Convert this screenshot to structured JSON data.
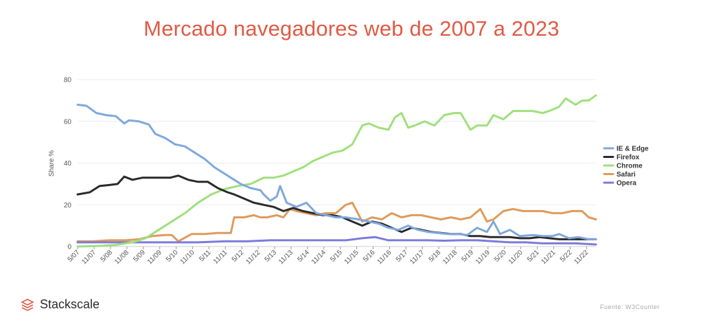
{
  "title": "Mercado navegadores web de 2007 a 2023",
  "brand": {
    "name": "Stackscale",
    "logo_icon": "stackscale-layers-icon",
    "logo_color": "#e05a45"
  },
  "source": "Fuente: W3Counter",
  "chart_data": {
    "type": "line",
    "ylabel": "Share %",
    "xlabel": "",
    "ylim": [
      0,
      80
    ],
    "yticks": [
      0,
      20,
      40,
      60,
      80
    ],
    "xlim": [
      2007.33,
      2023.12
    ],
    "xtick_labels": [
      "5/07",
      "11/07",
      "5/08",
      "11/08",
      "5/09",
      "11/09",
      "5/10",
      "11/10",
      "5/11",
      "11/11",
      "5/12",
      "11/12",
      "5/13",
      "11/13",
      "5/14",
      "11/14",
      "5/15",
      "11/15",
      "5/16",
      "11/16",
      "5/17",
      "11/17",
      "5/18",
      "11/18",
      "5/19",
      "11/19",
      "5/20",
      "11/20",
      "5/21",
      "11/21",
      "5/22",
      "11/22"
    ],
    "legend_position": "right",
    "grid": "horizontal",
    "series": [
      {
        "name": "IE & Edge",
        "color": "#7fa8dc",
        "x": [
          2007.33,
          2007.6,
          2007.9,
          2008.2,
          2008.5,
          2008.75,
          2008.9,
          2009.2,
          2009.5,
          2009.7,
          2010.0,
          2010.3,
          2010.6,
          2010.9,
          2011.2,
          2011.5,
          2011.8,
          2012.1,
          2012.3,
          2012.6,
          2012.9,
          2013.0,
          2013.2,
          2013.4,
          2013.5,
          2013.7,
          2014.0,
          2014.3,
          2014.6,
          2014.9,
          2015.2,
          2015.5,
          2015.9,
          2016.2,
          2016.5,
          2016.8,
          2017.1,
          2017.4,
          2017.7,
          2018.0,
          2018.3,
          2018.6,
          2018.9,
          2019.2,
          2019.5,
          2019.8,
          2020.0,
          2020.2,
          2020.5,
          2020.8,
          2021.2,
          2021.5,
          2021.8,
          2022.0,
          2022.3,
          2022.6,
          2022.9,
          2023.12
        ],
        "y": [
          68,
          67.5,
          64,
          63,
          62.5,
          59,
          60.5,
          60,
          58.5,
          54,
          52,
          49,
          48,
          45,
          42,
          38,
          35,
          32,
          30,
          28,
          27,
          25,
          22,
          24,
          29,
          21,
          19,
          21,
          16,
          15,
          14,
          14,
          13,
          12,
          11,
          9,
          8,
          10,
          8,
          7,
          6.5,
          6,
          6,
          5.5,
          9,
          7,
          12,
          6,
          8,
          5,
          5.5,
          5,
          5,
          6,
          4,
          4.5,
          3.5,
          3.5
        ]
      },
      {
        "name": "Firefox",
        "color": "#2a2a2a",
        "x": [
          2007.33,
          2007.7,
          2008.0,
          2008.3,
          2008.55,
          2008.75,
          2009.0,
          2009.3,
          2009.6,
          2009.9,
          2010.15,
          2010.4,
          2010.7,
          2011.0,
          2011.3,
          2011.6,
          2011.9,
          2012.1,
          2012.4,
          2012.7,
          2013.0,
          2013.3,
          2013.6,
          2013.9,
          2014.2,
          2014.5,
          2014.8,
          2015.1,
          2015.4,
          2015.7,
          2016.0,
          2016.3,
          2016.6,
          2016.9,
          2017.2,
          2017.5,
          2017.8,
          2018.1,
          2018.4,
          2018.7,
          2019.0,
          2019.3,
          2019.6,
          2019.9,
          2020.2,
          2020.5,
          2020.8,
          2021.1,
          2021.4,
          2021.7,
          2022.0,
          2022.3,
          2022.6,
          2022.9,
          2023.12
        ],
        "y": [
          25,
          26,
          29,
          29.5,
          30,
          33.5,
          32,
          33,
          33,
          33,
          33,
          34,
          32,
          31,
          31,
          28,
          26,
          25,
          23,
          21,
          20,
          19,
          17,
          18.5,
          17,
          16,
          15,
          15,
          14,
          12,
          10,
          12,
          11,
          9,
          7,
          9,
          8,
          7,
          6.5,
          6,
          6,
          5,
          5,
          4.5,
          4.5,
          4.5,
          4,
          4,
          4.5,
          4,
          3.5,
          3.5,
          3.5,
          3.5,
          3.5
        ]
      },
      {
        "name": "Chrome",
        "color": "#9fe07b",
        "x": [
          2007.33,
          2008.0,
          2008.5,
          2009.0,
          2009.4,
          2009.8,
          2010.2,
          2010.6,
          2011.0,
          2011.4,
          2011.8,
          2012.2,
          2012.6,
          2013.0,
          2013.3,
          2013.6,
          2013.9,
          2014.2,
          2014.5,
          2014.8,
          2015.1,
          2015.4,
          2015.7,
          2016.0,
          2016.2,
          2016.5,
          2016.8,
          2017.0,
          2017.2,
          2017.4,
          2017.6,
          2017.9,
          2018.2,
          2018.5,
          2018.8,
          2019.0,
          2019.3,
          2019.5,
          2019.8,
          2020.0,
          2020.3,
          2020.6,
          2020.9,
          2021.2,
          2021.5,
          2021.7,
          2022.0,
          2022.2,
          2022.5,
          2022.7,
          2022.9,
          2023.12
        ],
        "y": [
          0,
          0.3,
          0.8,
          2,
          4,
          8,
          12,
          16,
          21,
          25,
          27.5,
          29,
          30,
          33,
          33,
          34,
          36,
          38,
          41,
          43,
          45,
          46,
          49,
          58,
          59,
          57,
          56,
          62,
          64,
          57,
          58,
          60,
          58,
          63,
          64,
          64,
          56,
          58,
          58,
          63,
          61,
          65,
          65,
          65,
          64,
          65,
          67,
          71,
          68,
          70,
          70,
          72.5
        ]
      },
      {
        "name": "Safari",
        "color": "#df9a5b",
        "x": [
          2007.33,
          2007.8,
          2008.3,
          2008.8,
          2009.2,
          2009.6,
          2010.0,
          2010.2,
          2010.4,
          2010.8,
          2011.2,
          2011.6,
          2012.0,
          2012.1,
          2012.4,
          2012.7,
          2012.9,
          2013.1,
          2013.4,
          2013.6,
          2013.8,
          2014.0,
          2014.3,
          2014.6,
          2014.9,
          2015.2,
          2015.5,
          2015.7,
          2016.0,
          2016.3,
          2016.6,
          2016.9,
          2017.2,
          2017.5,
          2017.8,
          2018.1,
          2018.4,
          2018.7,
          2019.0,
          2019.3,
          2019.6,
          2019.8,
          2020.0,
          2020.3,
          2020.6,
          2020.9,
          2021.2,
          2021.5,
          2021.8,
          2022.1,
          2022.4,
          2022.7,
          2022.9,
          2023.12
        ],
        "y": [
          2.5,
          2.5,
          3,
          3,
          3.5,
          5,
          5.5,
          5.5,
          2.5,
          6,
          6,
          6.5,
          6.5,
          14,
          14,
          15,
          14,
          14,
          15,
          14,
          18,
          17,
          16,
          15,
          16,
          16,
          20,
          21,
          12,
          14,
          13,
          16,
          14,
          15,
          15,
          14,
          13,
          14,
          13,
          14,
          18,
          12,
          13,
          17,
          18,
          17,
          17,
          17,
          16,
          16,
          17,
          17,
          14,
          13
        ]
      },
      {
        "name": "Opera",
        "color": "#7b7bdc",
        "x": [
          2007.33,
          2008.0,
          2008.8,
          2009.5,
          2010.2,
          2011.0,
          2011.8,
          2012.5,
          2013.2,
          2014.0,
          2014.8,
          2015.5,
          2016.0,
          2016.4,
          2016.8,
          2017.2,
          2017.6,
          2018.0,
          2018.5,
          2019.0,
          2019.5,
          2020.0,
          2020.5,
          2021.0,
          2021.5,
          2022.0,
          2022.5,
          2023.12
        ],
        "y": [
          2,
          2,
          2,
          2,
          2,
          2,
          2.5,
          2.5,
          3,
          3,
          3,
          3,
          4,
          4.5,
          3,
          3,
          3,
          3,
          2.8,
          3,
          3,
          2.5,
          2,
          2,
          1.5,
          1.5,
          1.5,
          1
        ]
      }
    ]
  }
}
